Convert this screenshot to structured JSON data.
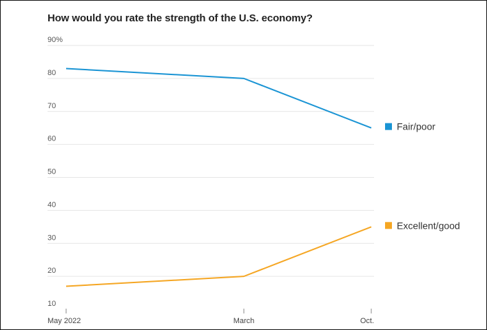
{
  "chart_data": {
    "type": "line",
    "title": "How would you rate the strength of the U.S. economy?",
    "xlabel": "",
    "ylabel": "",
    "categories": [
      "May 2022",
      "March",
      "Oct."
    ],
    "y_ticks": [
      "90%",
      "80",
      "70",
      "60",
      "50",
      "40",
      "30",
      "20",
      "10"
    ],
    "ylim": [
      10,
      90
    ],
    "grid": true,
    "legend_position": "right, at line ends",
    "series": [
      {
        "name": "Fair/poor",
        "color": "#1a94d4",
        "values": [
          83,
          80,
          65
        ]
      },
      {
        "name": "Excellent/good",
        "color": "#f5a623",
        "values": [
          17,
          20,
          35
        ]
      }
    ]
  }
}
